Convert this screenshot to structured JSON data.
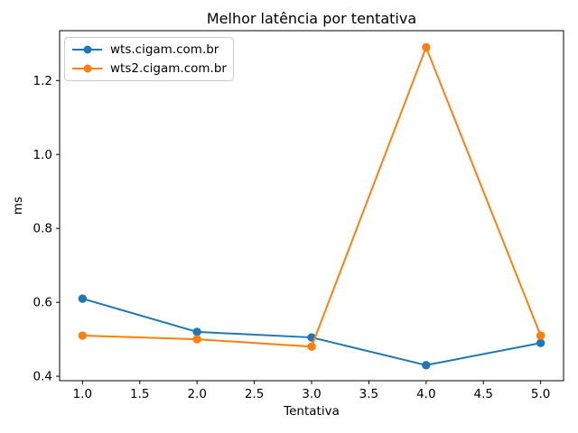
{
  "chart_data": {
    "type": "line",
    "title": "Melhor latência por tentativa",
    "xlabel": "Tentativa",
    "ylabel": "ms",
    "grid": false,
    "legend_position": "upper left",
    "marker": "o",
    "x": [
      1,
      2,
      3,
      4,
      5
    ],
    "series": [
      {
        "name": "wts.cigam.com.br",
        "color": "#1f77b4",
        "values": [
          0.61,
          0.52,
          0.505,
          0.43,
          0.49
        ]
      },
      {
        "name": "wts2.cigam.com.br",
        "color": "#ff7f0e",
        "values": [
          0.51,
          0.5,
          0.48,
          1.29,
          0.51
        ]
      }
    ],
    "xlim": [
      0.8,
      5.2
    ],
    "ylim": [
      0.388,
      1.335
    ],
    "xticks": [
      1.0,
      1.5,
      2.0,
      2.5,
      3.0,
      3.5,
      4.0,
      4.5,
      5.0
    ],
    "xtick_labels": [
      "1.0",
      "1.5",
      "2.0",
      "2.5",
      "3.0",
      "3.5",
      "4.0",
      "4.5",
      "5.0"
    ],
    "yticks": [
      0.4,
      0.6,
      0.8,
      1.0,
      1.2
    ],
    "ytick_labels": [
      "0.4",
      "0.6",
      "0.8",
      "1.0",
      "1.2"
    ],
    "axis_color": "#000000",
    "legend_border_color": "#cccccc"
  }
}
